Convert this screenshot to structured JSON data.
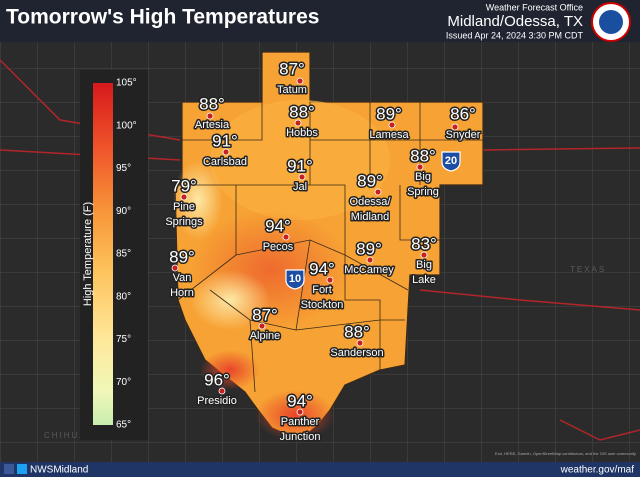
{
  "header": {
    "title": "Tomorrow's High Temperatures",
    "office": "Weather Forecast Office",
    "location": "Midland/Odessa, TX",
    "issued": "Issued Apr 24, 2024 3:30 PM CDT"
  },
  "legend": {
    "title": "High Temperature (F)",
    "labels": [
      "105°",
      "100°",
      "95°",
      "90°",
      "85°",
      "80°",
      "75°",
      "70°",
      "65°"
    ]
  },
  "cities": [
    {
      "temp": "87°",
      "name": [
        "Tatum"
      ]
    },
    {
      "temp": "88°",
      "name": [
        "Artesia"
      ]
    },
    {
      "temp": "88°",
      "name": [
        "Hobbs"
      ]
    },
    {
      "temp": "89°",
      "name": [
        "Lamesa"
      ]
    },
    {
      "temp": "86°",
      "name": [
        "Snyder"
      ]
    },
    {
      "temp": "91°",
      "name": [
        "Carlsbad"
      ]
    },
    {
      "temp": "91°",
      "name": [
        "Jal"
      ]
    },
    {
      "temp": "88°",
      "name": [
        "Big",
        "Spring"
      ]
    },
    {
      "temp": "89°",
      "name": [
        "Odessa/",
        "Midland"
      ]
    },
    {
      "temp": "79°",
      "name": [
        "Pine",
        "Springs"
      ]
    },
    {
      "temp": "94°",
      "name": [
        "Pecos"
      ]
    },
    {
      "temp": "89°",
      "name": [
        "McCamey"
      ]
    },
    {
      "temp": "83°",
      "name": [
        "Big",
        "Lake"
      ]
    },
    {
      "temp": "89°",
      "name": [
        "Van",
        "Horn"
      ]
    },
    {
      "temp": "94°",
      "name": [
        "Fort",
        "Stockton"
      ]
    },
    {
      "temp": "87°",
      "name": [
        "Alpine"
      ]
    },
    {
      "temp": "88°",
      "name": [
        "Sanderson"
      ]
    },
    {
      "temp": "96°",
      "name": [
        "Presidio"
      ]
    },
    {
      "temp": "94°",
      "name": [
        "Panther",
        "Junction"
      ]
    }
  ],
  "shields": [
    "20",
    "10"
  ],
  "map_labels": [
    "TEXAS",
    "CHIHUAHUA"
  ],
  "footer": {
    "social": "NWSMidland",
    "url": "weather.gov/maf",
    "attribution": "Esri, HERE, Garmin, OpenStreetMap contributors, and the GIS user community"
  }
}
